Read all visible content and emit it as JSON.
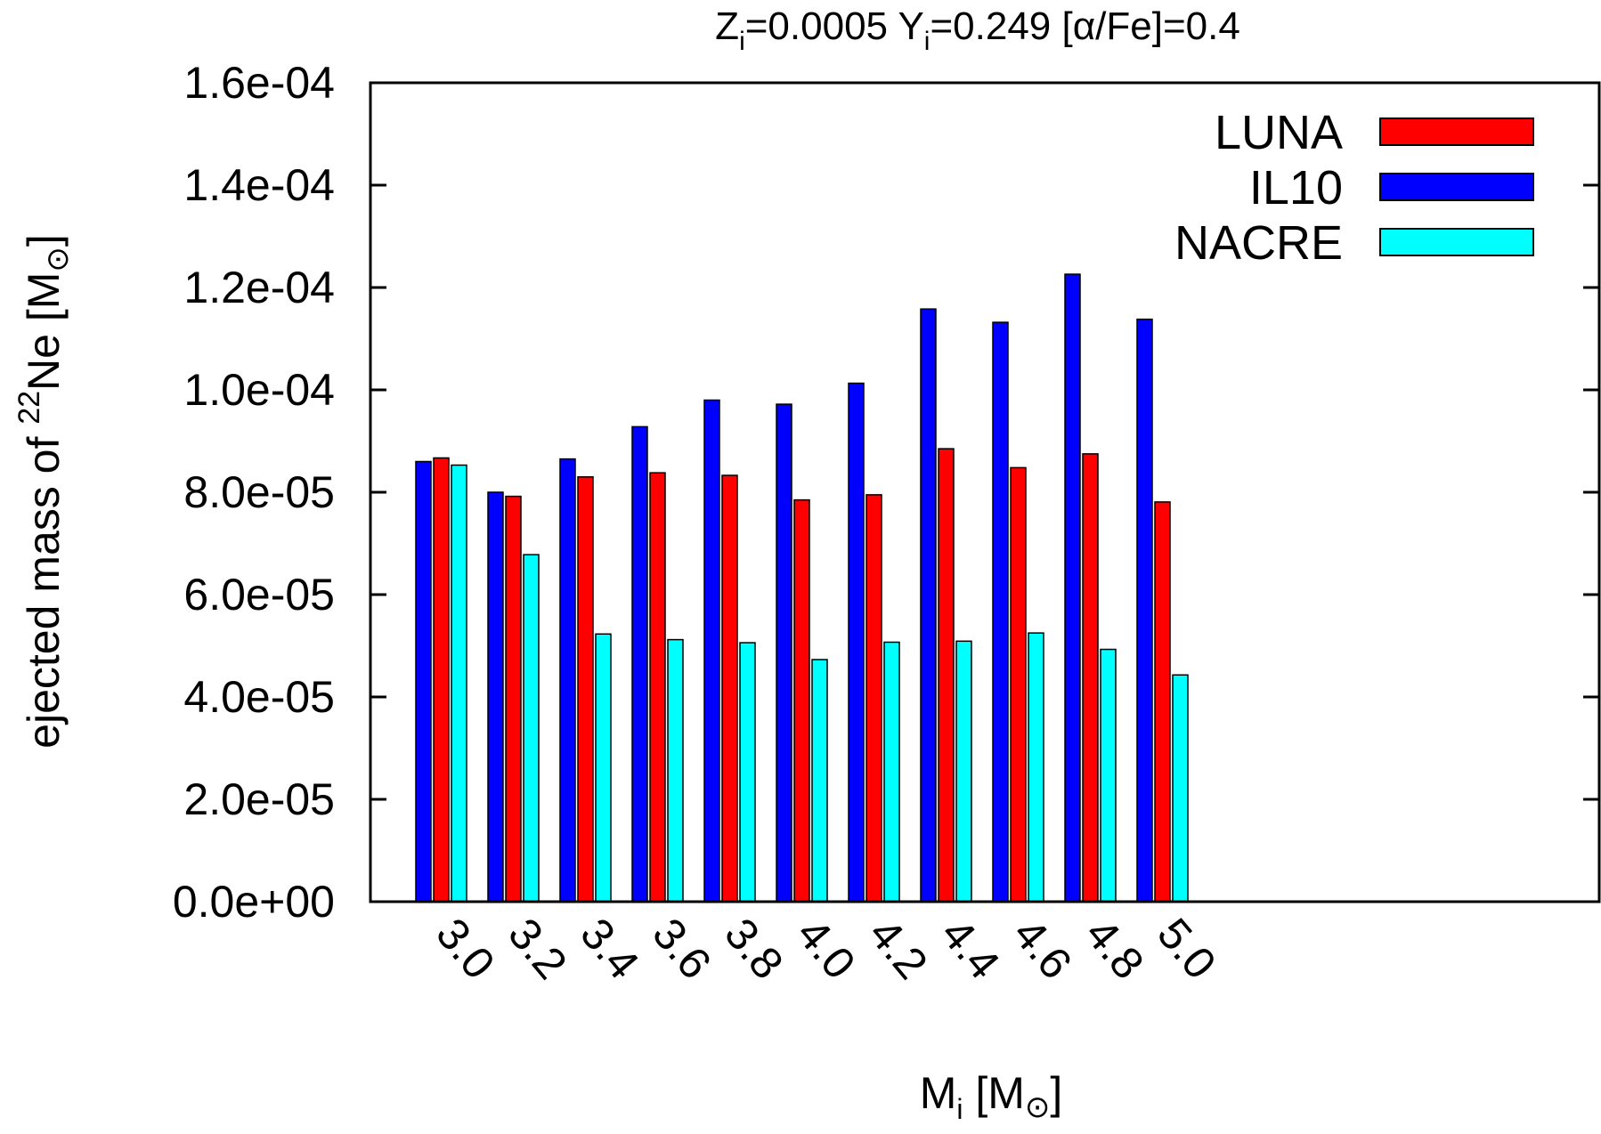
{
  "chart_data": {
    "type": "bar",
    "title": {
      "parts": [
        {
          "text": "Z",
          "sub": "i"
        },
        {
          "text": "=0.0005 Y",
          "sub": "i"
        },
        {
          "text": "=0.249  [α/Fe]=0.4"
        }
      ]
    },
    "xlabel": {
      "main": "M",
      "sub": "i",
      "rest": " [M",
      "symbol": "⊙",
      "close": "]"
    },
    "ylabel": {
      "pre": "ejected mass  of ",
      "sup": "22",
      "mid": "Ne  [M",
      "symbol": "⊙",
      "close": "]"
    },
    "categories": [
      "3.0",
      "3.2",
      "3.4",
      "3.6",
      "3.8",
      "4.0",
      "4.2",
      "4.4",
      "4.6",
      "4.8",
      "5.0"
    ],
    "series": [
      {
        "name": "IL10",
        "color": "#0000ff",
        "values": [
          8.6e-05,
          8e-05,
          8.65e-05,
          9.28e-05,
          9.8e-05,
          9.72e-05,
          0.0001013,
          0.0001158,
          0.0001132,
          0.0001226,
          0.0001138
        ]
      },
      {
        "name": "LUNA",
        "color": "#ff0000",
        "values": [
          8.67e-05,
          7.92e-05,
          8.3e-05,
          8.38e-05,
          8.33e-05,
          7.85e-05,
          7.95e-05,
          8.85e-05,
          8.48e-05,
          8.75e-05,
          7.81e-05
        ]
      },
      {
        "name": "NACRE",
        "color": "#00ffff",
        "values": [
          8.53e-05,
          6.78e-05,
          5.23e-05,
          5.12e-05,
          5.06e-05,
          4.73e-05,
          5.07e-05,
          5.09e-05,
          5.25e-05,
          4.93e-05,
          4.43e-05
        ]
      }
    ],
    "legend_order": [
      "LUNA",
      "IL10",
      "NACRE"
    ],
    "legend_position": "top-right",
    "ylim": [
      0,
      0.00016
    ],
    "yticks": [
      0,
      2e-05,
      4e-05,
      6e-05,
      8e-05,
      0.0001,
      0.00012,
      0.00014,
      0.00016
    ],
    "ytick_labels": [
      "0.0e+00",
      "2.0e-05",
      "4.0e-05",
      "6.0e-05",
      "8.0e-05",
      "1.0e-04",
      "1.2e-04",
      "1.4e-04",
      "1.6e-04"
    ],
    "grid": false
  }
}
